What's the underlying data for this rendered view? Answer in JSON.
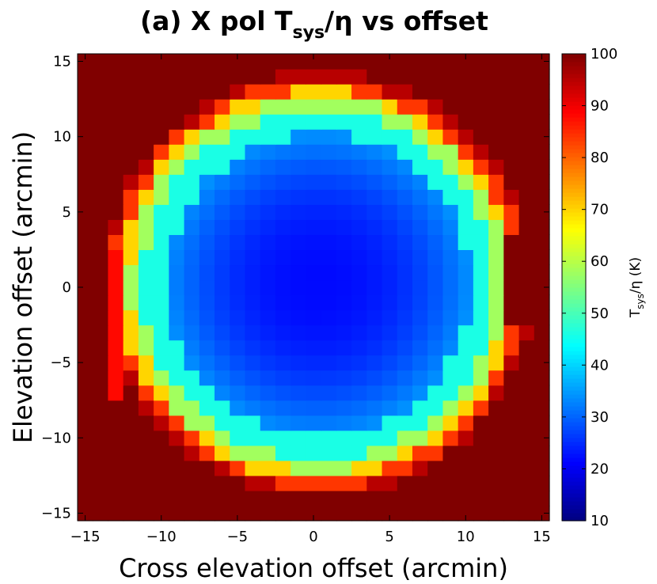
{
  "chart_data": {
    "type": "heatmap",
    "title": {
      "prefix": "(a) X pol T",
      "subscript": "sys",
      "suffix": "/η vs offset"
    },
    "xlabel": "Cross elevation offset (arcmin)",
    "ylabel": "Elevation offset (arcmin)",
    "xlim": [
      -15.5,
      15.5
    ],
    "ylim": [
      -15.5,
      15.5
    ],
    "xticks": [
      -15,
      -10,
      -5,
      0,
      5,
      10,
      15
    ],
    "yticks": [
      -15,
      -10,
      -5,
      0,
      5,
      10,
      15
    ],
    "xtick_labels": [
      "−15",
      "−10",
      "−5",
      "0",
      "5",
      "10",
      "15"
    ],
    "ytick_labels": [
      "−15",
      "−10",
      "−5",
      "0",
      "5",
      "10",
      "15"
    ],
    "grid": {
      "x_start": -15,
      "y_start": -15,
      "step": 1,
      "nx": 31,
      "ny": 31
    },
    "colormap": "jet",
    "clim": [
      10,
      100
    ],
    "colorbar": {
      "label": {
        "prefix": "T",
        "subscript": "sys",
        "suffix": "/η (K)"
      },
      "ticks": [
        10,
        20,
        30,
        40,
        50,
        60,
        70,
        80,
        90,
        100
      ],
      "tick_labels": [
        "10",
        "20",
        "30",
        "40",
        "50",
        "60",
        "70",
        "80",
        "90",
        "100"
      ]
    },
    "saturation_value": 100,
    "beam_model": {
      "center": [
        0.3,
        0.2
      ],
      "base_value": 22,
      "rings": [
        {
          "radius": 10,
          "value": 34
        },
        {
          "radius": 11.6,
          "value": 46
        },
        {
          "radius": 12.4,
          "value": 58
        },
        {
          "radius": 13.0,
          "value": 70
        },
        {
          "radius": 13.6,
          "value": 84
        },
        {
          "radius": 14.1,
          "value": 95
        }
      ],
      "right_notch": {
        "x_min": 13,
        "y_min": -2,
        "y_max": 3,
        "value": 100
      },
      "left_bulge": {
        "x_at": -13,
        "y_min": -7,
        "y_max": 2,
        "value": 88
      }
    }
  }
}
